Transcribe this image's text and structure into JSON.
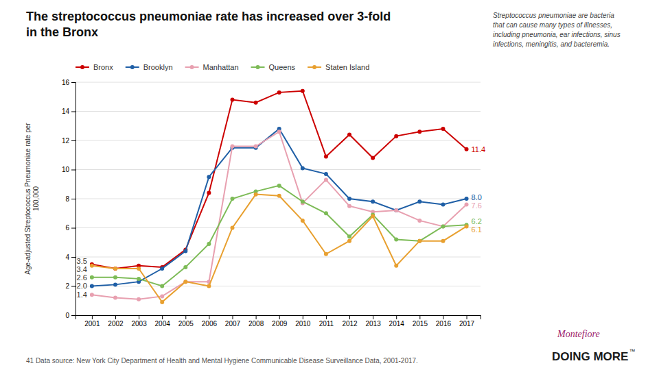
{
  "chart_data": {
    "type": "line",
    "title": "The streptococcus pneumoniae rate has increased over 3-fold\nin the Bronx",
    "ylabel": "Age-adjusted Streptococcus Pneumoniae rate per\n100,000",
    "annotation": "Streptococcus pneumoniae are bacteria\nthat can cause many types of illnesses,\nincluding pneumonia, ear infections, sinus\ninfections, meningitis, and bacteremia.",
    "footer": "41  Data source: New York City Department of Health and Mental Hygiene Communicable Disease Surveillance Data, 2001-2017.",
    "logo": [
      {
        "text": "Montefiore",
        "color": "#9b1a6a"
      },
      {
        "text": "DOING MORE",
        "color": "#1a1a1a"
      },
      {
        "text": "™",
        "color": "#1a1a1a"
      }
    ],
    "x": [
      2001,
      2002,
      2003,
      2004,
      2005,
      2006,
      2007,
      2008,
      2009,
      2010,
      2011,
      2012,
      2013,
      2014,
      2015,
      2016,
      2017
    ],
    "series": [
      {
        "name": "Bronx",
        "color": "#cc0000",
        "values": [
          3.5,
          3.2,
          3.4,
          3.3,
          4.5,
          8.4,
          14.8,
          14.6,
          15.3,
          15.4,
          10.9,
          12.4,
          10.8,
          12.3,
          12.6,
          12.8,
          11.4
        ],
        "value_labels": [
          "3.5",
          null,
          null,
          null,
          null,
          null,
          null,
          null,
          null,
          null,
          null,
          null,
          null,
          null,
          null,
          null,
          "11.4"
        ]
      },
      {
        "name": "Brooklyn",
        "color": "#1f5fa6",
        "values": [
          2.0,
          2.1,
          2.3,
          3.2,
          4.4,
          9.5,
          11.5,
          11.5,
          12.8,
          10.1,
          9.7,
          8.0,
          7.8,
          7.2,
          7.8,
          7.6,
          8.0
        ],
        "value_labels": [
          "2.0",
          null,
          null,
          null,
          null,
          null,
          null,
          null,
          null,
          null,
          null,
          null,
          null,
          null,
          null,
          null,
          "8.0"
        ]
      },
      {
        "name": "Manhattan",
        "color": "#e8a0b0",
        "values": [
          1.4,
          1.2,
          1.1,
          1.3,
          2.3,
          2.3,
          11.6,
          11.6,
          12.6,
          7.7,
          9.3,
          7.5,
          7.1,
          7.2,
          6.5,
          6.1,
          7.6
        ],
        "value_labels": [
          "1.4",
          null,
          null,
          null,
          null,
          null,
          null,
          null,
          null,
          null,
          null,
          null,
          null,
          null,
          null,
          null,
          "7.6"
        ]
      },
      {
        "name": "Queens",
        "color": "#7dbb57",
        "values": [
          2.6,
          2.6,
          2.5,
          2.0,
          3.3,
          4.9,
          8.0,
          8.5,
          8.9,
          7.8,
          7.0,
          5.4,
          6.9,
          5.2,
          5.1,
          6.1,
          6.2
        ],
        "value_labels": [
          "2.6",
          null,
          null,
          null,
          null,
          null,
          null,
          null,
          null,
          null,
          null,
          null,
          null,
          null,
          null,
          null,
          "6.2"
        ]
      },
      {
        "name": "Staten Island",
        "color": "#e8a030",
        "values": [
          3.4,
          3.2,
          3.2,
          0.9,
          2.3,
          2.0,
          6.0,
          8.3,
          8.2,
          6.5,
          4.2,
          5.1,
          6.8,
          3.4,
          5.1,
          5.1,
          6.1
        ],
        "value_labels": [
          "3.4",
          null,
          null,
          null,
          null,
          null,
          null,
          null,
          null,
          null,
          null,
          null,
          null,
          null,
          null,
          null,
          "6.1"
        ]
      }
    ],
    "xlim": [
      2000.3,
      2017.6
    ],
    "xticks": [
      2001,
      2002,
      2003,
      2004,
      2005,
      2006,
      2007,
      2008,
      2009,
      2010,
      2011,
      2012,
      2013,
      2014,
      2015,
      2016,
      2017
    ],
    "ylim": [
      0,
      16
    ],
    "yticks": [
      0,
      2,
      4,
      6,
      8,
      10,
      12,
      14,
      16
    ],
    "grid": true,
    "legend": "top",
    "marker": "circle",
    "line_style": "solid",
    "data_labels": true
  }
}
